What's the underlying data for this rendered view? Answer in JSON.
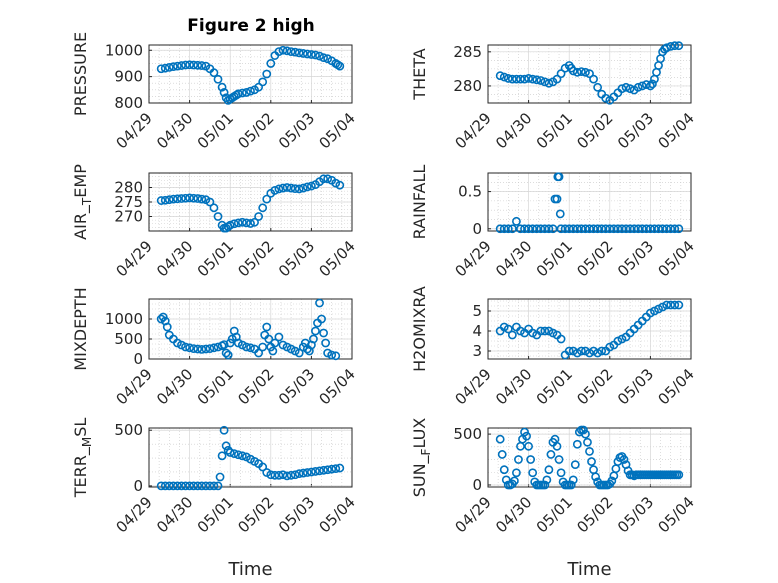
{
  "figure_title": "Figure 2 high",
  "marker_color": "#0072bd",
  "chart_data": [
    {
      "type": "scatter",
      "panel": "pressure",
      "ylabel": "PRESSURE",
      "ylim": [
        800,
        1020
      ],
      "yticks": [
        800,
        900,
        1000
      ],
      "ytick_labels": [
        "800",
        "900",
        "1000"
      ],
      "xlim": [
        0,
        5
      ],
      "xtick_labels": [
        "04/29",
        "04/30",
        "05/01",
        "05/02",
        "05/03",
        "05/04"
      ],
      "xlabel": "",
      "x": [
        0.3,
        0.4,
        0.5,
        0.6,
        0.7,
        0.8,
        0.9,
        1.0,
        1.1,
        1.2,
        1.3,
        1.4,
        1.5,
        1.6,
        1.7,
        1.8,
        1.85,
        1.9,
        1.95,
        2.0,
        2.05,
        2.1,
        2.15,
        2.2,
        2.3,
        2.4,
        2.5,
        2.6,
        2.7,
        2.8,
        2.9,
        3.0,
        3.1,
        3.2,
        3.3,
        3.4,
        3.5,
        3.6,
        3.7,
        3.8,
        3.9,
        4.0,
        4.1,
        4.2,
        4.3,
        4.4,
        4.5,
        4.6,
        4.65,
        4.7
      ],
      "y": [
        930,
        932,
        935,
        938,
        940,
        942,
        944,
        945,
        944,
        943,
        942,
        940,
        930,
        915,
        890,
        860,
        840,
        820,
        810,
        815,
        820,
        825,
        830,
        835,
        838,
        840,
        845,
        850,
        860,
        880,
        910,
        950,
        980,
        995,
        1000,
        998,
        995,
        993,
        990,
        988,
        986,
        984,
        982,
        978,
        972,
        968,
        960,
        950,
        945,
        940
      ]
    },
    {
      "type": "scatter",
      "panel": "theta",
      "ylabel": "THETA",
      "ylim": [
        277.5,
        286
      ],
      "yticks": [
        280,
        285
      ],
      "ytick_labels": [
        "280",
        "285"
      ],
      "xlim": [
        0,
        5
      ],
      "xtick_labels": [
        "04/29",
        "04/30",
        "05/01",
        "05/02",
        "05/03",
        "05/04"
      ],
      "xlabel": "",
      "x": [
        0.3,
        0.4,
        0.5,
        0.6,
        0.7,
        0.8,
        0.9,
        1.0,
        1.1,
        1.2,
        1.3,
        1.4,
        1.5,
        1.6,
        1.7,
        1.8,
        1.9,
        2.0,
        2.05,
        2.1,
        2.2,
        2.3,
        2.4,
        2.5,
        2.6,
        2.7,
        2.8,
        2.9,
        3.0,
        3.1,
        3.2,
        3.3,
        3.4,
        3.5,
        3.6,
        3.7,
        3.8,
        3.9,
        4.0,
        4.05,
        4.1,
        4.15,
        4.2,
        4.25,
        4.3,
        4.35,
        4.4,
        4.5,
        4.6,
        4.7
      ],
      "y": [
        281.5,
        281.3,
        281.1,
        281.0,
        281.0,
        281.0,
        281.0,
        281.1,
        281.0,
        280.9,
        280.8,
        280.6,
        280.4,
        280.6,
        281.0,
        281.8,
        282.6,
        283.0,
        282.6,
        282.2,
        282.0,
        282.1,
        282.0,
        281.8,
        281.0,
        279.8,
        278.8,
        278.2,
        277.9,
        278.4,
        279.0,
        279.6,
        279.8,
        279.6,
        279.4,
        279.8,
        280.0,
        280.2,
        280.0,
        280.3,
        281.0,
        282.0,
        283.0,
        284.0,
        285.0,
        285.4,
        285.6,
        285.8,
        285.9,
        285.9
      ]
    },
    {
      "type": "scatter",
      "panel": "air_temp",
      "ylabel": "AIR_TEMP",
      "ylim": [
        265,
        285
      ],
      "yticks": [
        270,
        275,
        280
      ],
      "ytick_labels": [
        "270",
        "275",
        "280"
      ],
      "xlim": [
        0,
        5
      ],
      "xtick_labels": [
        "04/29",
        "04/30",
        "05/01",
        "05/02",
        "05/03",
        "05/04"
      ],
      "xlabel": "",
      "x": [
        0.3,
        0.4,
        0.5,
        0.6,
        0.7,
        0.8,
        0.9,
        1.0,
        1.1,
        1.2,
        1.3,
        1.4,
        1.5,
        1.6,
        1.7,
        1.8,
        1.85,
        1.9,
        1.95,
        2.0,
        2.1,
        2.2,
        2.3,
        2.4,
        2.5,
        2.6,
        2.7,
        2.8,
        2.9,
        3.0,
        3.1,
        3.2,
        3.3,
        3.4,
        3.5,
        3.6,
        3.7,
        3.8,
        3.9,
        4.0,
        4.1,
        4.2,
        4.3,
        4.4,
        4.5,
        4.6,
        4.7
      ],
      "y": [
        275.5,
        275.6,
        275.8,
        276.0,
        276.1,
        276.2,
        276.3,
        276.4,
        276.3,
        276.2,
        276.0,
        275.8,
        275.0,
        273.0,
        270.0,
        267.0,
        266.0,
        266.0,
        266.5,
        267.0,
        267.5,
        267.8,
        268.0,
        267.8,
        267.6,
        268.0,
        270.0,
        273.0,
        276.0,
        278.0,
        279.0,
        279.5,
        279.8,
        280.0,
        279.8,
        279.6,
        279.5,
        279.8,
        280.2,
        280.5,
        281.0,
        282.0,
        283.0,
        283.0,
        282.5,
        281.5,
        280.8
      ]
    },
    {
      "type": "scatter",
      "panel": "rainfall",
      "ylabel": "RAINFALL",
      "ylim": [
        -0.03,
        0.75
      ],
      "yticks": [
        0,
        0.5
      ],
      "ytick_labels": [
        "0",
        "0.5"
      ],
      "xlim": [
        0,
        5
      ],
      "xtick_labels": [
        "04/29",
        "04/30",
        "05/01",
        "05/02",
        "05/03",
        "05/04"
      ],
      "xlabel": "",
      "x": [
        0.3,
        0.4,
        0.5,
        0.6,
        0.7,
        0.8,
        0.9,
        1.0,
        1.1,
        1.2,
        1.3,
        1.4,
        1.5,
        1.6,
        1.65,
        1.7,
        1.72,
        1.75,
        1.78,
        1.8,
        1.9,
        2.0,
        2.1,
        2.2,
        2.3,
        2.4,
        2.5,
        2.6,
        2.7,
        2.8,
        2.9,
        3.0,
        3.1,
        3.2,
        3.3,
        3.4,
        3.5,
        3.6,
        3.7,
        3.8,
        3.9,
        4.0,
        4.1,
        4.2,
        4.3,
        4.4,
        4.5,
        4.6,
        4.7
      ],
      "y": [
        0,
        0,
        0,
        0,
        0.1,
        0,
        0,
        0,
        0,
        0,
        0,
        0,
        0,
        0,
        0.4,
        0.4,
        0.7,
        0.7,
        0.2,
        0,
        0,
        0,
        0,
        0,
        0,
        0,
        0,
        0,
        0,
        0,
        0,
        0,
        0,
        0,
        0,
        0,
        0,
        0,
        0,
        0,
        0,
        0,
        0,
        0,
        0,
        0,
        0,
        0,
        0
      ]
    },
    {
      "type": "scatter",
      "panel": "mixdepth",
      "ylabel": "MIXDEPTH",
      "ylim": [
        0,
        1500
      ],
      "yticks": [
        0,
        500,
        1000
      ],
      "ytick_labels": [
        "0",
        "500",
        "1000"
      ],
      "xlim": [
        0,
        5
      ],
      "xtick_labels": [
        "04/29",
        "04/30",
        "05/01",
        "05/02",
        "05/03",
        "05/04"
      ],
      "xlabel": "",
      "x": [
        0.3,
        0.35,
        0.4,
        0.45,
        0.5,
        0.6,
        0.7,
        0.8,
        0.9,
        1.0,
        1.1,
        1.2,
        1.3,
        1.4,
        1.5,
        1.6,
        1.7,
        1.8,
        1.85,
        1.9,
        1.95,
        2.0,
        2.05,
        2.1,
        2.15,
        2.2,
        2.3,
        2.4,
        2.5,
        2.6,
        2.7,
        2.8,
        2.85,
        2.9,
        2.95,
        3.0,
        3.05,
        3.1,
        3.2,
        3.3,
        3.4,
        3.5,
        3.6,
        3.7,
        3.8,
        3.85,
        3.9,
        3.95,
        4.0,
        4.05,
        4.1,
        4.15,
        4.2,
        4.25,
        4.3,
        4.35,
        4.4,
        4.5,
        4.6
      ],
      "y": [
        1000,
        1050,
        950,
        800,
        600,
        500,
        400,
        350,
        300,
        280,
        260,
        250,
        240,
        250,
        260,
        280,
        300,
        330,
        360,
        150,
        100,
        400,
        500,
        700,
        550,
        400,
        350,
        300,
        280,
        250,
        150,
        300,
        600,
        800,
        500,
        300,
        200,
        400,
        550,
        350,
        300,
        250,
        200,
        150,
        300,
        400,
        250,
        200,
        350,
        500,
        700,
        900,
        1400,
        1000,
        650,
        400,
        150,
        100,
        80
      ]
    },
    {
      "type": "scatter",
      "panel": "h2omixra",
      "ylabel": "H2OMIXRA",
      "ylim": [
        2.6,
        5.6
      ],
      "yticks": [
        3,
        4,
        5
      ],
      "ytick_labels": [
        "3",
        "4",
        "5"
      ],
      "xlim": [
        0,
        5
      ],
      "xtick_labels": [
        "04/29",
        "04/30",
        "05/01",
        "05/02",
        "05/03",
        "05/04"
      ],
      "xlabel": "",
      "x": [
        0.3,
        0.4,
        0.5,
        0.6,
        0.7,
        0.8,
        0.9,
        1.0,
        1.1,
        1.2,
        1.3,
        1.4,
        1.5,
        1.6,
        1.7,
        1.8,
        1.9,
        2.0,
        2.1,
        2.2,
        2.3,
        2.4,
        2.5,
        2.6,
        2.7,
        2.8,
        2.9,
        3.0,
        3.1,
        3.2,
        3.3,
        3.4,
        3.5,
        3.6,
        3.7,
        3.8,
        3.9,
        4.0,
        4.1,
        4.2,
        4.3,
        4.4,
        4.5,
        4.6,
        4.7
      ],
      "y": [
        4.0,
        4.2,
        4.1,
        3.8,
        4.2,
        4.0,
        3.9,
        4.1,
        3.9,
        3.8,
        4.0,
        4.0,
        4.0,
        3.9,
        3.8,
        3.6,
        2.8,
        3.0,
        3.0,
        2.9,
        3.0,
        3.0,
        2.9,
        3.0,
        2.9,
        3.0,
        3.0,
        3.2,
        3.3,
        3.5,
        3.6,
        3.7,
        3.9,
        4.1,
        4.3,
        4.5,
        4.7,
        4.9,
        5.0,
        5.1,
        5.2,
        5.3,
        5.3,
        5.3,
        5.3
      ]
    },
    {
      "type": "scatter",
      "panel": "terr_msl",
      "ylabel": "TERR_MSL",
      "ylim": [
        -10,
        520
      ],
      "yticks": [
        0,
        500
      ],
      "ytick_labels": [
        "0",
        "500"
      ],
      "xlim": [
        0,
        5
      ],
      "xtick_labels": [
        "04/29",
        "04/30",
        "05/01",
        "05/02",
        "05/03",
        "05/04"
      ],
      "xlabel": "Time",
      "x": [
        0.3,
        0.4,
        0.5,
        0.6,
        0.7,
        0.8,
        0.9,
        1.0,
        1.1,
        1.2,
        1.3,
        1.4,
        1.5,
        1.6,
        1.7,
        1.75,
        1.8,
        1.85,
        1.9,
        1.95,
        2.0,
        2.1,
        2.2,
        2.3,
        2.4,
        2.5,
        2.6,
        2.7,
        2.8,
        2.9,
        3.0,
        3.1,
        3.2,
        3.3,
        3.4,
        3.5,
        3.6,
        3.7,
        3.8,
        3.9,
        4.0,
        4.1,
        4.2,
        4.3,
        4.4,
        4.5,
        4.6,
        4.7
      ],
      "y": [
        0,
        0,
        0,
        0,
        0,
        0,
        0,
        0,
        0,
        0,
        0,
        0,
        0,
        0,
        0,
        80,
        270,
        500,
        360,
        320,
        300,
        290,
        280,
        270,
        260,
        240,
        220,
        200,
        170,
        120,
        100,
        95,
        95,
        100,
        90,
        95,
        100,
        110,
        115,
        120,
        125,
        130,
        135,
        140,
        145,
        150,
        155,
        160
      ]
    },
    {
      "type": "scatter",
      "panel": "sun_flux",
      "ylabel": "SUN_FLUX",
      "ylim": [
        -20,
        560
      ],
      "yticks": [
        0,
        500
      ],
      "ytick_labels": [
        "0",
        "500"
      ],
      "xlim": [
        0,
        5
      ],
      "xtick_labels": [
        "04/29",
        "04/30",
        "05/01",
        "05/02",
        "05/03",
        "05/04"
      ],
      "xlabel": "Time",
      "x": [
        0.3,
        0.35,
        0.4,
        0.45,
        0.5,
        0.55,
        0.6,
        0.65,
        0.7,
        0.75,
        0.8,
        0.85,
        0.9,
        0.95,
        1.0,
        1.05,
        1.1,
        1.15,
        1.2,
        1.25,
        1.3,
        1.35,
        1.4,
        1.45,
        1.5,
        1.55,
        1.6,
        1.65,
        1.7,
        1.75,
        1.8,
        1.85,
        1.9,
        1.95,
        2.0,
        2.05,
        2.1,
        2.15,
        2.2,
        2.25,
        2.3,
        2.35,
        2.4,
        2.45,
        2.5,
        2.55,
        2.6,
        2.65,
        2.7,
        2.75,
        2.8,
        2.85,
        2.9,
        2.95,
        3.0,
        3.05,
        3.1,
        3.15,
        3.2,
        3.25,
        3.3,
        3.35,
        3.4,
        3.45,
        3.5,
        3.55,
        3.6,
        3.65,
        3.7,
        3.75,
        3.8,
        3.85,
        3.9,
        3.95,
        4.0,
        4.05,
        4.1,
        4.15,
        4.2,
        4.25,
        4.3,
        4.35,
        4.4,
        4.45,
        4.5,
        4.55,
        4.6,
        4.65,
        4.7
      ],
      "y": [
        450,
        300,
        150,
        50,
        0,
        0,
        10,
        40,
        120,
        250,
        380,
        450,
        520,
        480,
        380,
        250,
        120,
        30,
        0,
        0,
        0,
        0,
        0,
        50,
        150,
        300,
        420,
        450,
        380,
        250,
        120,
        30,
        0,
        0,
        0,
        0,
        50,
        200,
        400,
        520,
        540,
        540,
        500,
        420,
        330,
        230,
        150,
        80,
        30,
        0,
        0,
        0,
        0,
        0,
        10,
        40,
        90,
        160,
        230,
        270,
        280,
        250,
        200,
        140,
        100,
        100,
        90,
        100,
        100,
        100,
        100,
        100,
        100,
        100,
        100,
        100,
        100,
        100,
        100,
        100,
        100,
        100,
        100,
        100,
        100,
        100,
        100,
        100,
        100
      ]
    }
  ]
}
